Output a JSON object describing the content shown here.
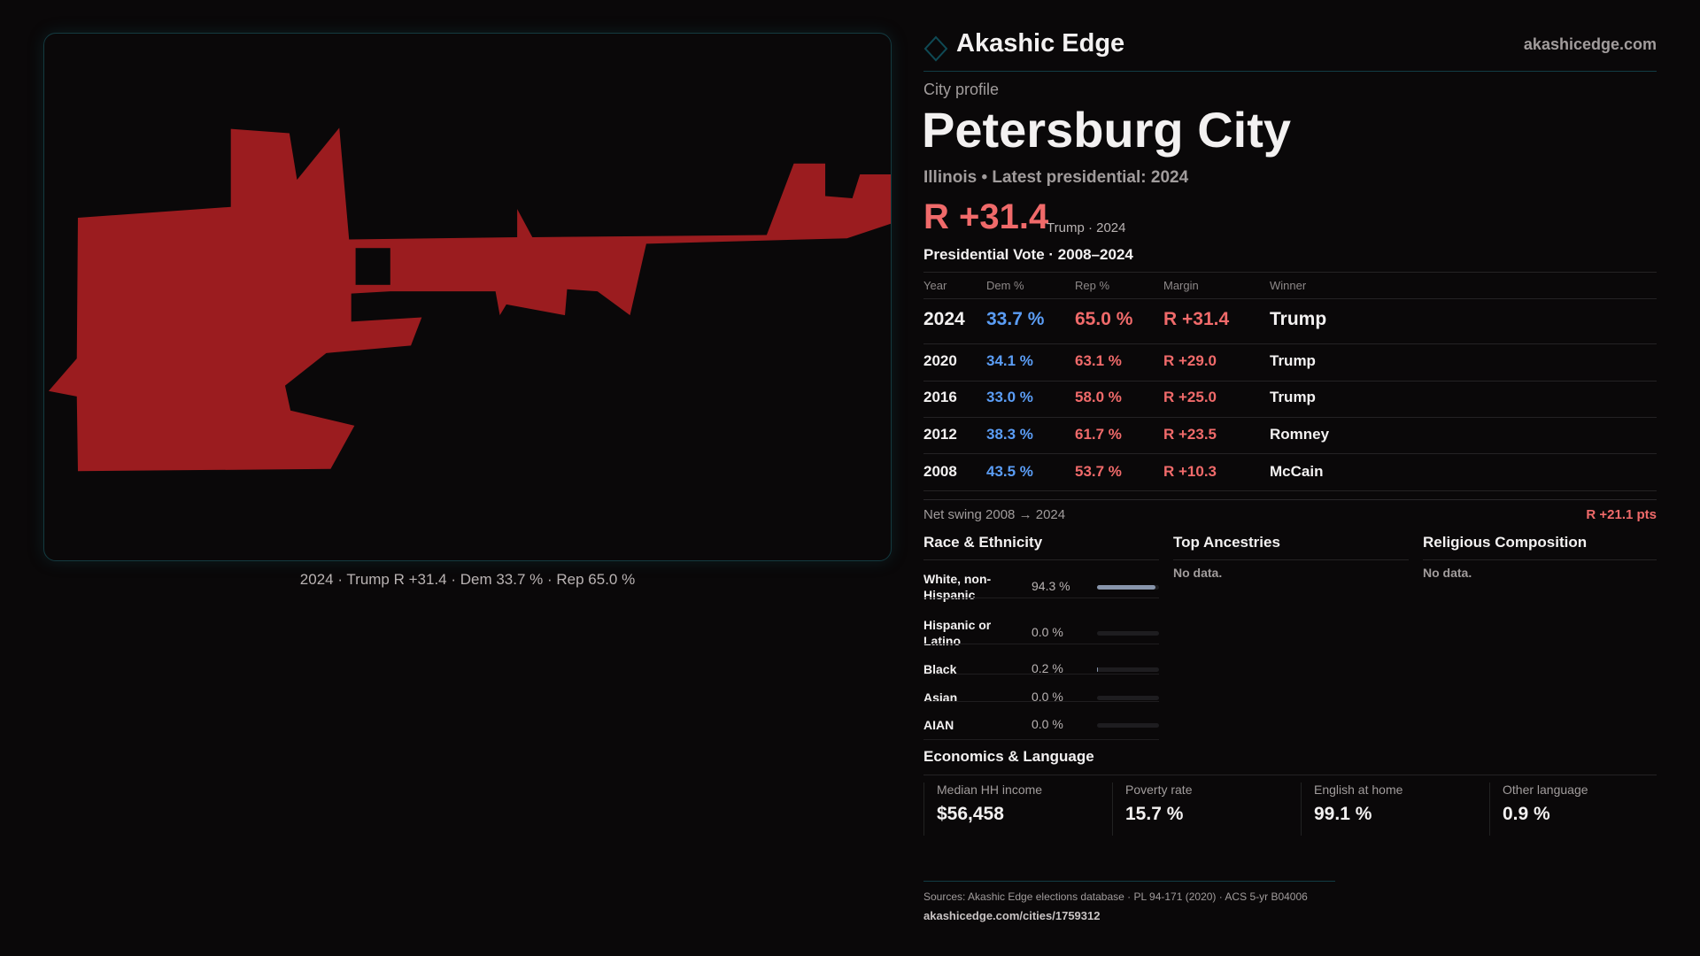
{
  "brand": {
    "name": "Akashic Edge",
    "domain": "akashicedge.com"
  },
  "profile": {
    "kicker": "City profile",
    "title": "Petersburg City",
    "subtitle": "Illinois • Latest presidential: 2024",
    "margin": "R +31.4",
    "margin_note": "Trump · 2024"
  },
  "map": {
    "caption": "2024 · Trump R +31.4 · Dem 33.7 % · Rep 65.0 %",
    "fill_color": "#9b1c1f"
  },
  "vote": {
    "title": "Presidential Vote · 2008–2024",
    "headers": [
      "Year",
      "Dem %",
      "Rep %",
      "Margin",
      "Winner"
    ],
    "rows": [
      {
        "year": "2024",
        "dem": "33.7 %",
        "rep": "65.0 %",
        "margin": "R +31.4",
        "winner": "Trump"
      },
      {
        "year": "2020",
        "dem": "34.1 %",
        "rep": "63.1 %",
        "margin": "R +29.0",
        "winner": "Trump"
      },
      {
        "year": "2016",
        "dem": "33.0 %",
        "rep": "58.0 %",
        "margin": "R +25.0",
        "winner": "Trump"
      },
      {
        "year": "2012",
        "dem": "38.3 %",
        "rep": "61.7 %",
        "margin": "R +23.5",
        "winner": "Romney"
      },
      {
        "year": "2008",
        "dem": "43.5 %",
        "rep": "53.7 %",
        "margin": "R +10.3",
        "winner": "McCain"
      }
    ],
    "swing_label": "Net swing 2008 → 2024",
    "swing_value": "R +21.1 pts"
  },
  "race": {
    "title": "Race & Ethnicity",
    "rows": [
      {
        "label": "White, non-Hispanic",
        "pct": "94.3 %",
        "value": 94.3
      },
      {
        "label": "Hispanic or Latino",
        "pct": "0.0 %",
        "value": 0
      },
      {
        "label": "Black",
        "pct": "0.2 %",
        "value": 0.2
      },
      {
        "label": "Asian",
        "pct": "0.0 %",
        "value": 0
      },
      {
        "label": "AIAN",
        "pct": "0.0 %",
        "value": 0
      }
    ]
  },
  "ancestries": {
    "title": "Top Ancestries",
    "empty": "No data."
  },
  "religion": {
    "title": "Religious Composition",
    "empty": "No data."
  },
  "econ": {
    "title": "Economics & Language",
    "stats": [
      {
        "label": "Median HH income",
        "value": "$56,458"
      },
      {
        "label": "Poverty rate",
        "value": "15.7 %"
      },
      {
        "label": "English at home",
        "value": "99.1 %"
      },
      {
        "label": "Other language",
        "value": "0.9 %"
      }
    ]
  },
  "footer": {
    "sources": "Sources: Akashic Edge elections database · PL 94-171 (2020) · ACS 5-yr B04006",
    "url": "akashicedge.com/cities/1759312"
  }
}
